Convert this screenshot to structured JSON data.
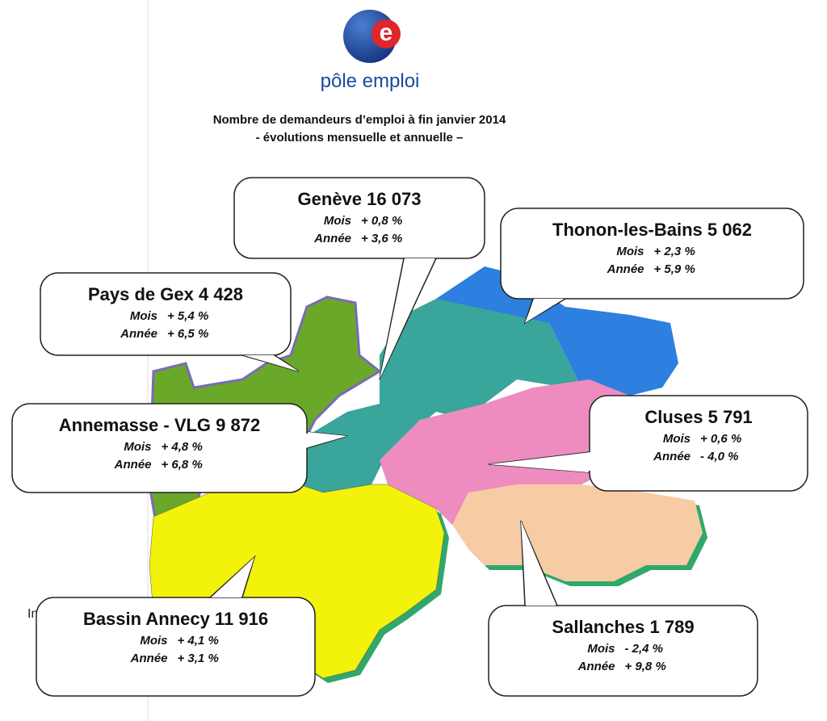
{
  "header": {
    "logo_text": "pôle emploi",
    "title_line1": "Nombre de demandeurs d’emploi à fin janvier 2014",
    "title_line2": "- évolutions mensuelle et annuelle –"
  },
  "regions": [
    {
      "name": "Genève",
      "count": "16 073",
      "mois_label": "Mois",
      "mois": "+ 0,8 %",
      "annee_label": "Année",
      "annee": "+ 3,6 %"
    },
    {
      "name": "Thonon-les-Bains",
      "count": "5 062",
      "mois_label": "Mois",
      "mois": "+ 2,3 %",
      "annee_label": "Année",
      "annee": "+ 5,9 %"
    },
    {
      "name": "Pays de Gex",
      "count": "4 428",
      "mois_label": "Mois",
      "mois": "+ 5,4 %",
      "annee_label": "Année",
      "annee": "+ 6,5 %"
    },
    {
      "name": "Annemasse - VLG",
      "count": "9 872",
      "mois_label": "Mois",
      "mois": "+ 4,8 %",
      "annee_label": "Année",
      "annee": "+ 6,8 %"
    },
    {
      "name": "Cluses",
      "count": "5 791",
      "mois_label": "Mois",
      "mois": "+ 0,6 %",
      "annee_label": "Année",
      "annee": "- 4,0 %"
    },
    {
      "name": "Bassin Annecy",
      "count": "11 916",
      "mois_label": "Mois",
      "mois": "+ 4,1 %",
      "annee_label": "Année",
      "annee": "+ 3,1 %"
    },
    {
      "name": "Sallanches",
      "count": "1 789",
      "mois_label": "Mois",
      "mois": "- 2,4 %",
      "annee_label": "Année",
      "annee": "+ 9,8 %"
    }
  ],
  "fragment": "In"
}
